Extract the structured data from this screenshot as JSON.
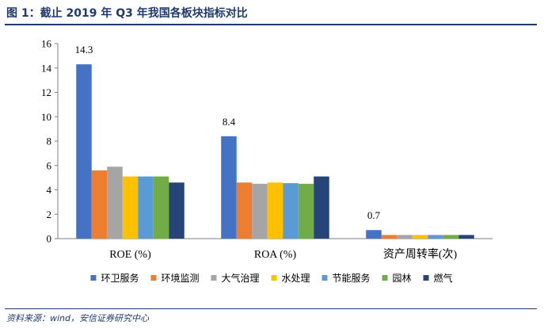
{
  "title": "图 1：截止 2019 年 Q3 年我国各板块指标对比",
  "source": "资料来源：wind，安信证券研究中心",
  "chart_data": {
    "type": "bar",
    "categories": [
      "ROE (%)",
      "ROA (%)",
      "资产周转率(次)"
    ],
    "series": [
      {
        "name": "环卫服务",
        "color": "#4472C4",
        "values": [
          14.3,
          8.4,
          0.7
        ]
      },
      {
        "name": "环境监测",
        "color": "#ED7D31",
        "values": [
          5.6,
          4.6,
          0.3
        ]
      },
      {
        "name": "大气治理",
        "color": "#A5A5A5",
        "values": [
          5.9,
          4.5,
          0.3
        ]
      },
      {
        "name": "水处理",
        "color": "#FFC000",
        "values": [
          5.1,
          4.6,
          0.3
        ]
      },
      {
        "name": "节能服务",
        "color": "#5B9BD5",
        "values": [
          5.1,
          4.55,
          0.3
        ]
      },
      {
        "name": "园林",
        "color": "#70AD47",
        "values": [
          5.1,
          4.5,
          0.3
        ]
      },
      {
        "name": "燃气",
        "color": "#264478",
        "values": [
          4.6,
          5.1,
          0.3
        ]
      }
    ],
    "data_labels": [
      {
        "series": 0,
        "category": 0,
        "text": "14.3"
      },
      {
        "series": 0,
        "category": 1,
        "text": "8.4"
      },
      {
        "series": 0,
        "category": 2,
        "text": "0.7"
      }
    ],
    "yticks": [
      "0",
      "2",
      "4",
      "6",
      "8",
      "10",
      "12",
      "14",
      "16"
    ],
    "ylim": [
      0,
      16
    ],
    "grid": false,
    "legend_position": "bottom"
  }
}
